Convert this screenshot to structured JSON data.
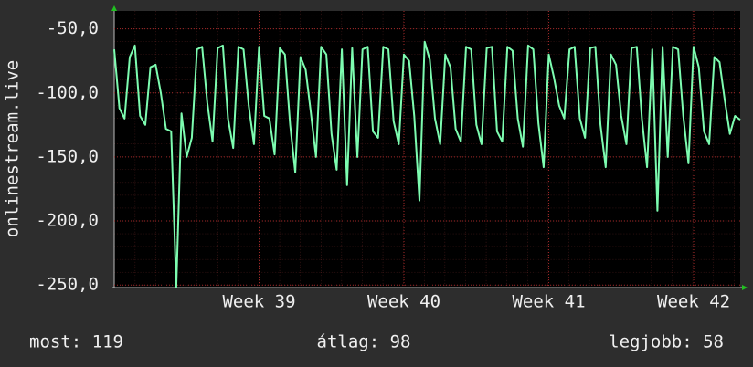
{
  "chart_data": {
    "type": "line",
    "y_label": "onlinestream.live",
    "categories": [
      null,
      null,
      null,
      null,
      null,
      null,
      null,
      null,
      null,
      null,
      null,
      null,
      null,
      null,
      null,
      null,
      null,
      null,
      null,
      null,
      null,
      null,
      null,
      null,
      null,
      null,
      null,
      null,
      "Week 39",
      null,
      null,
      null,
      null,
      null,
      null,
      null,
      null,
      null,
      null,
      null,
      null,
      null,
      null,
      null,
      null,
      null,
      null,
      null,
      null,
      null,
      null,
      null,
      null,
      null,
      null,
      null,
      "Week 40",
      null,
      null,
      null,
      null,
      null,
      null,
      null,
      null,
      null,
      null,
      null,
      null,
      null,
      null,
      null,
      null,
      null,
      null,
      null,
      null,
      null,
      null,
      null,
      null,
      null,
      null,
      null,
      "Week 41",
      null,
      null,
      null,
      null,
      null,
      null,
      null,
      null,
      null,
      null,
      null,
      null,
      null,
      null,
      null,
      null,
      null,
      null,
      null,
      null,
      null,
      null,
      null,
      null,
      null,
      null,
      null,
      "Week 42",
      null,
      null,
      null,
      null,
      null,
      null,
      null,
      null,
      null
    ],
    "values": [
      -66,
      -112,
      -120,
      -72,
      -63,
      -118,
      -125,
      -80,
      -78,
      -100,
      -128,
      -130,
      -252,
      -116,
      -150,
      -135,
      -66,
      -64,
      -108,
      -138,
      -65,
      -63,
      -120,
      -143,
      -64,
      -66,
      -110,
      -140,
      -64,
      -118,
      -120,
      -148,
      -65,
      -70,
      -125,
      -162,
      -72,
      -82,
      -115,
      -150,
      -64,
      -70,
      -132,
      -160,
      -66,
      -172,
      -65,
      -150,
      -66,
      -64,
      -130,
      -135,
      -64,
      -66,
      -122,
      -140,
      -70,
      -75,
      -118,
      -184,
      -60,
      -74,
      -120,
      -140,
      -70,
      -80,
      -128,
      -138,
      -64,
      -66,
      -125,
      -140,
      -65,
      -64,
      -130,
      -138,
      -64,
      -67,
      -120,
      -142,
      -63,
      -66,
      -124,
      -158,
      -70,
      -88,
      -110,
      -120,
      -66,
      -64,
      -120,
      -135,
      -65,
      -64,
      -125,
      -158,
      -70,
      -78,
      -118,
      -140,
      -65,
      -64,
      -120,
      -158,
      -66,
      -192,
      -64,
      -150,
      -64,
      -66,
      -118,
      -155,
      -64,
      -80,
      -130,
      -140,
      -72,
      -76,
      -105,
      -132,
      -118,
      -121
    ],
    "color": "#7dfcb0",
    "ylim": [
      -252,
      -36
    ],
    "yticks": [
      {
        "value": -250,
        "label": "-250,0"
      },
      {
        "value": -200,
        "label": "-200,0"
      },
      {
        "value": -150,
        "label": "-150,0"
      },
      {
        "value": -100,
        "label": "-100,0"
      },
      {
        "value": -50,
        "label": "-50,0"
      }
    ],
    "grid": true,
    "footer": {
      "current": "most: 119",
      "average": "átlag: 98",
      "best": "legjobb: 58"
    }
  }
}
